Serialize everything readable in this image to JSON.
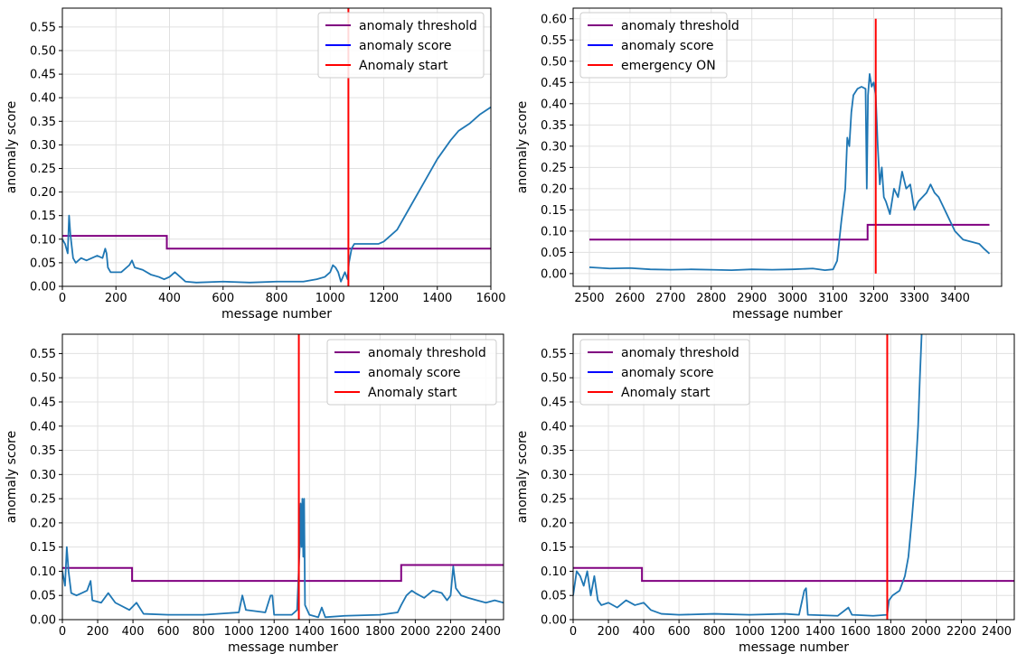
{
  "chart_data": [
    {
      "type": "line",
      "xlabel": "message number",
      "ylabel": "anomaly score",
      "xlim": [
        0,
        1600
      ],
      "ylim": [
        0,
        0.59
      ],
      "xticks": [
        0,
        200,
        400,
        600,
        800,
        1000,
        1200,
        1400,
        1600
      ],
      "yticks": [
        0.0,
        0.05,
        0.1,
        0.15,
        0.2,
        0.25,
        0.3,
        0.35,
        0.4,
        0.45,
        0.5,
        0.55
      ],
      "grid": true,
      "legend_position": "top-right",
      "legend": [
        {
          "label": "anomaly threshold",
          "color": "#800080"
        },
        {
          "label": "anomaly score",
          "color": "#0000ff"
        },
        {
          "label": "Anomaly start",
          "color": "#ff0000"
        }
      ],
      "score": [
        [
          0,
          0.1
        ],
        [
          10,
          0.09
        ],
        [
          20,
          0.07
        ],
        [
          25,
          0.15
        ],
        [
          30,
          0.11
        ],
        [
          40,
          0.06
        ],
        [
          50,
          0.05
        ],
        [
          70,
          0.06
        ],
        [
          90,
          0.055
        ],
        [
          110,
          0.06
        ],
        [
          130,
          0.065
        ],
        [
          150,
          0.06
        ],
        [
          160,
          0.08
        ],
        [
          165,
          0.07
        ],
        [
          170,
          0.04
        ],
        [
          180,
          0.03
        ],
        [
          220,
          0.03
        ],
        [
          250,
          0.045
        ],
        [
          260,
          0.055
        ],
        [
          270,
          0.04
        ],
        [
          300,
          0.035
        ],
        [
          330,
          0.025
        ],
        [
          360,
          0.02
        ],
        [
          380,
          0.015
        ],
        [
          400,
          0.02
        ],
        [
          420,
          0.03
        ],
        [
          440,
          0.02
        ],
        [
          460,
          0.01
        ],
        [
          500,
          0.008
        ],
        [
          600,
          0.01
        ],
        [
          700,
          0.008
        ],
        [
          800,
          0.01
        ],
        [
          900,
          0.01
        ],
        [
          950,
          0.015
        ],
        [
          980,
          0.02
        ],
        [
          1000,
          0.03
        ],
        [
          1010,
          0.045
        ],
        [
          1020,
          0.04
        ],
        [
          1030,
          0.03
        ],
        [
          1040,
          0.01
        ],
        [
          1055,
          0.03
        ],
        [
          1065,
          0.015
        ],
        [
          1070,
          0.05
        ],
        [
          1080,
          0.08
        ],
        [
          1090,
          0.09
        ],
        [
          1150,
          0.09
        ],
        [
          1180,
          0.09
        ],
        [
          1200,
          0.095
        ],
        [
          1250,
          0.12
        ],
        [
          1300,
          0.17
        ],
        [
          1350,
          0.22
        ],
        [
          1400,
          0.27
        ],
        [
          1450,
          0.31
        ],
        [
          1480,
          0.33
        ],
        [
          1520,
          0.345
        ],
        [
          1560,
          0.365
        ],
        [
          1600,
          0.38
        ]
      ],
      "threshold": [
        [
          0,
          0.107
        ],
        [
          390,
          0.107
        ],
        [
          390,
          0.08
        ],
        [
          1600,
          0.08
        ]
      ],
      "event_x": 1068
    },
    {
      "type": "line",
      "xlabel": "message number",
      "ylabel": "anomaly score",
      "xlim": [
        2460,
        3515
      ],
      "ylim": [
        -0.03,
        0.625
      ],
      "xticks": [
        2500,
        2600,
        2700,
        2800,
        2900,
        3000,
        3100,
        3200,
        3300,
        3400
      ],
      "yticks": [
        0.0,
        0.05,
        0.1,
        0.15,
        0.2,
        0.25,
        0.3,
        0.35,
        0.4,
        0.45,
        0.5,
        0.55,
        0.6
      ],
      "grid": true,
      "legend_position": "top-left",
      "legend": [
        {
          "label": "anomaly threshold",
          "color": "#800080"
        },
        {
          "label": "anomaly score",
          "color": "#0000ff"
        },
        {
          "label": "emergency ON",
          "color": "#ff0000"
        }
      ],
      "score": [
        [
          2500,
          0.015
        ],
        [
          2550,
          0.012
        ],
        [
          2600,
          0.013
        ],
        [
          2650,
          0.01
        ],
        [
          2700,
          0.009
        ],
        [
          2750,
          0.01
        ],
        [
          2800,
          0.009
        ],
        [
          2850,
          0.008
        ],
        [
          2900,
          0.01
        ],
        [
          2950,
          0.009
        ],
        [
          3000,
          0.01
        ],
        [
          3050,
          0.012
        ],
        [
          3080,
          0.008
        ],
        [
          3100,
          0.01
        ],
        [
          3110,
          0.03
        ],
        [
          3120,
          0.12
        ],
        [
          3130,
          0.2
        ],
        [
          3135,
          0.32
        ],
        [
          3140,
          0.3
        ],
        [
          3145,
          0.38
        ],
        [
          3150,
          0.42
        ],
        [
          3160,
          0.435
        ],
        [
          3170,
          0.44
        ],
        [
          3180,
          0.435
        ],
        [
          3183,
          0.2
        ],
        [
          3186,
          0.42
        ],
        [
          3190,
          0.47
        ],
        [
          3195,
          0.44
        ],
        [
          3200,
          0.45
        ],
        [
          3205,
          0.42
        ],
        [
          3210,
          0.3
        ],
        [
          3215,
          0.21
        ],
        [
          3220,
          0.25
        ],
        [
          3225,
          0.18
        ],
        [
          3230,
          0.17
        ],
        [
          3240,
          0.14
        ],
        [
          3250,
          0.2
        ],
        [
          3260,
          0.18
        ],
        [
          3270,
          0.24
        ],
        [
          3280,
          0.2
        ],
        [
          3290,
          0.21
        ],
        [
          3300,
          0.15
        ],
        [
          3310,
          0.17
        ],
        [
          3320,
          0.18
        ],
        [
          3330,
          0.19
        ],
        [
          3340,
          0.21
        ],
        [
          3350,
          0.19
        ],
        [
          3360,
          0.18
        ],
        [
          3370,
          0.16
        ],
        [
          3380,
          0.14
        ],
        [
          3390,
          0.12
        ],
        [
          3400,
          0.1
        ],
        [
          3420,
          0.08
        ],
        [
          3440,
          0.075
        ],
        [
          3460,
          0.07
        ],
        [
          3470,
          0.06
        ],
        [
          3485,
          0.047
        ]
      ],
      "threshold": [
        [
          2500,
          0.08
        ],
        [
          3185,
          0.08
        ],
        [
          3185,
          0.115
        ],
        [
          3485,
          0.115
        ]
      ],
      "event_x": 3205,
      "event_y": [
        0,
        0.6
      ]
    },
    {
      "type": "line",
      "xlabel": "message number",
      "ylabel": "anomaly score",
      "xlim": [
        0,
        2500
      ],
      "ylim": [
        0,
        0.59
      ],
      "xticks": [
        0,
        200,
        400,
        600,
        800,
        1000,
        1200,
        1400,
        1600,
        1800,
        2000,
        2200,
        2400
      ],
      "yticks": [
        0.0,
        0.05,
        0.1,
        0.15,
        0.2,
        0.25,
        0.3,
        0.35,
        0.4,
        0.45,
        0.5,
        0.55
      ],
      "grid": true,
      "legend_position": "top-right",
      "legend": [
        {
          "label": "anomaly threshold",
          "color": "#800080"
        },
        {
          "label": "anomaly score",
          "color": "#0000ff"
        },
        {
          "label": "Anomaly start",
          "color": "#ff0000"
        }
      ],
      "score": [
        [
          0,
          0.1
        ],
        [
          15,
          0.07
        ],
        [
          25,
          0.15
        ],
        [
          35,
          0.1
        ],
        [
          50,
          0.055
        ],
        [
          80,
          0.05
        ],
        [
          110,
          0.055
        ],
        [
          140,
          0.06
        ],
        [
          160,
          0.08
        ],
        [
          170,
          0.04
        ],
        [
          220,
          0.035
        ],
        [
          260,
          0.055
        ],
        [
          300,
          0.035
        ],
        [
          380,
          0.02
        ],
        [
          420,
          0.035
        ],
        [
          460,
          0.012
        ],
        [
          600,
          0.01
        ],
        [
          800,
          0.01
        ],
        [
          1000,
          0.015
        ],
        [
          1020,
          0.05
        ],
        [
          1040,
          0.02
        ],
        [
          1150,
          0.015
        ],
        [
          1180,
          0.05
        ],
        [
          1190,
          0.05
        ],
        [
          1200,
          0.01
        ],
        [
          1300,
          0.01
        ],
        [
          1330,
          0.02
        ],
        [
          1345,
          0.15
        ],
        [
          1350,
          0.24
        ],
        [
          1355,
          0.15
        ],
        [
          1360,
          0.25
        ],
        [
          1365,
          0.13
        ],
        [
          1370,
          0.25
        ],
        [
          1375,
          0.03
        ],
        [
          1400,
          0.01
        ],
        [
          1450,
          0.005
        ],
        [
          1470,
          0.025
        ],
        [
          1490,
          0.005
        ],
        [
          1600,
          0.008
        ],
        [
          1800,
          0.01
        ],
        [
          1900,
          0.015
        ],
        [
          1920,
          0.03
        ],
        [
          1950,
          0.05
        ],
        [
          1980,
          0.06
        ],
        [
          2000,
          0.055
        ],
        [
          2050,
          0.045
        ],
        [
          2100,
          0.06
        ],
        [
          2150,
          0.055
        ],
        [
          2180,
          0.04
        ],
        [
          2200,
          0.05
        ],
        [
          2215,
          0.11
        ],
        [
          2230,
          0.065
        ],
        [
          2260,
          0.05
        ],
        [
          2300,
          0.045
        ],
        [
          2350,
          0.04
        ],
        [
          2400,
          0.035
        ],
        [
          2450,
          0.04
        ],
        [
          2500,
          0.035
        ]
      ],
      "threshold": [
        [
          0,
          0.107
        ],
        [
          395,
          0.107
        ],
        [
          395,
          0.08
        ],
        [
          1920,
          0.08
        ],
        [
          1920,
          0.113
        ],
        [
          2500,
          0.113
        ]
      ],
      "event_x": 1340
    },
    {
      "type": "line",
      "xlabel": "message number",
      "ylabel": "anomaly score",
      "xlim": [
        0,
        2500
      ],
      "ylim": [
        0,
        0.59
      ],
      "xticks": [
        0,
        200,
        400,
        600,
        800,
        1000,
        1200,
        1400,
        1600,
        1800,
        2000,
        2200,
        2400
      ],
      "yticks": [
        0.0,
        0.05,
        0.1,
        0.15,
        0.2,
        0.25,
        0.3,
        0.35,
        0.4,
        0.45,
        0.5,
        0.55
      ],
      "grid": true,
      "legend_position": "top-left",
      "legend": [
        {
          "label": "anomaly threshold",
          "color": "#800080"
        },
        {
          "label": "anomaly score",
          "color": "#0000ff"
        },
        {
          "label": "Anomaly start",
          "color": "#ff0000"
        }
      ],
      "score": [
        [
          0,
          0.05
        ],
        [
          20,
          0.1
        ],
        [
          40,
          0.09
        ],
        [
          60,
          0.07
        ],
        [
          80,
          0.1
        ],
        [
          100,
          0.05
        ],
        [
          120,
          0.09
        ],
        [
          140,
          0.04
        ],
        [
          160,
          0.03
        ],
        [
          200,
          0.035
        ],
        [
          250,
          0.025
        ],
        [
          300,
          0.04
        ],
        [
          350,
          0.03
        ],
        [
          400,
          0.035
        ],
        [
          440,
          0.02
        ],
        [
          500,
          0.012
        ],
        [
          600,
          0.01
        ],
        [
          800,
          0.012
        ],
        [
          1000,
          0.01
        ],
        [
          1200,
          0.012
        ],
        [
          1280,
          0.01
        ],
        [
          1310,
          0.06
        ],
        [
          1320,
          0.065
        ],
        [
          1330,
          0.01
        ],
        [
          1500,
          0.008
        ],
        [
          1560,
          0.025
        ],
        [
          1580,
          0.01
        ],
        [
          1700,
          0.008
        ],
        [
          1780,
          0.01
        ],
        [
          1790,
          0.04
        ],
        [
          1810,
          0.05
        ],
        [
          1850,
          0.06
        ],
        [
          1880,
          0.09
        ],
        [
          1900,
          0.13
        ],
        [
          1920,
          0.21
        ],
        [
          1940,
          0.3
        ],
        [
          1955,
          0.4
        ],
        [
          1965,
          0.5
        ],
        [
          1975,
          0.59
        ]
      ],
      "threshold": [
        [
          0,
          0.107
        ],
        [
          390,
          0.107
        ],
        [
          390,
          0.08
        ],
        [
          2500,
          0.08
        ]
      ],
      "event_x": 1780
    }
  ]
}
